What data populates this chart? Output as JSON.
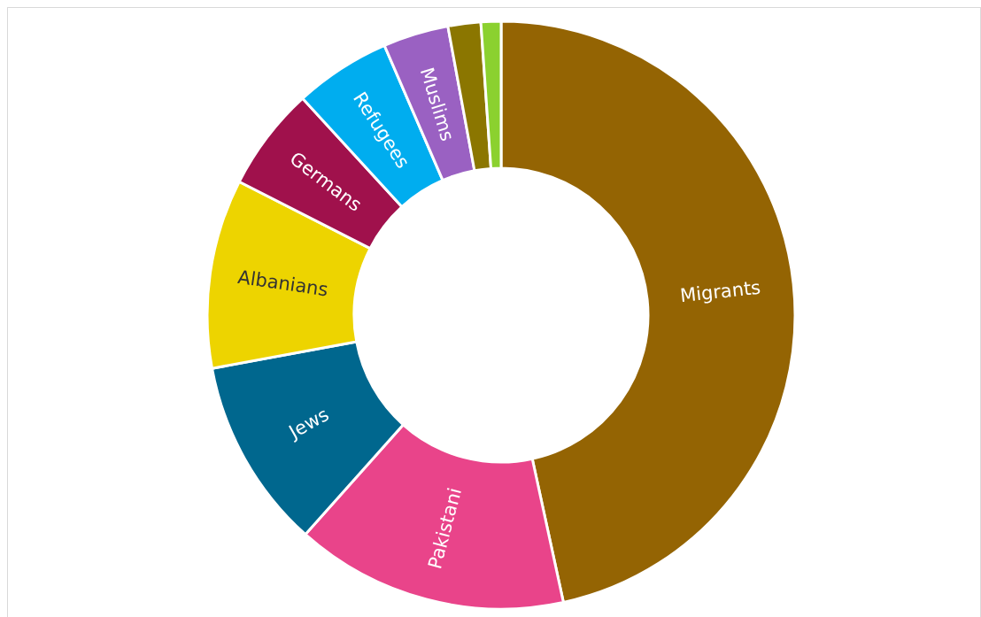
{
  "chart_data": {
    "type": "donut",
    "categories": [
      "Migrants",
      "Pakistani",
      "Jews",
      "Albanians",
      "Germans",
      "Refugees",
      "Muslims",
      null,
      null
    ],
    "values": [
      46.6,
      15,
      10.5,
      10.4,
      5.7,
      5.3,
      3.6,
      1.8,
      1.1
    ],
    "colors": [
      "#946403",
      "#e9448a",
      "#00678e",
      "#edd400",
      "#a0114c",
      "#00adef",
      "#9a61c2",
      "#8b7600",
      "#8bd12f"
    ],
    "legend": false
  }
}
